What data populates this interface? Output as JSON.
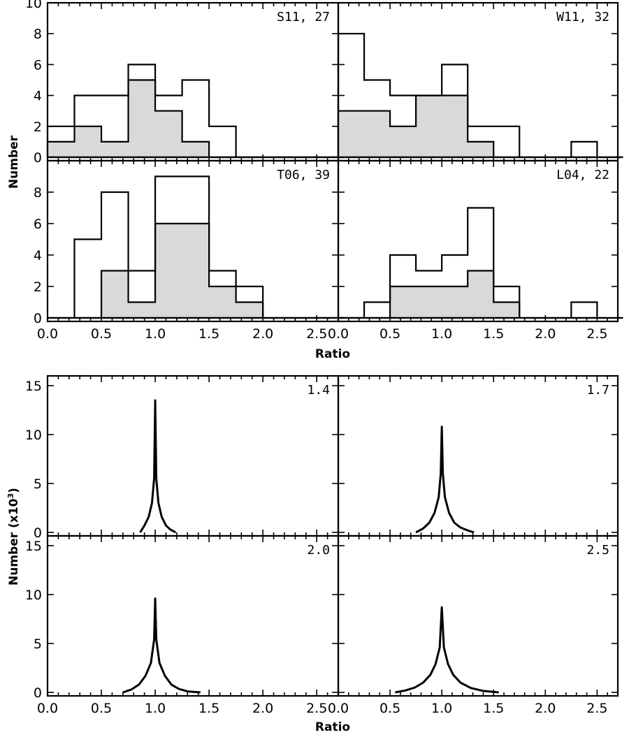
{
  "chart_data": [
    {
      "type": "histogram",
      "group": "observed",
      "xlabel": "Ratio",
      "ylabel": "Number",
      "xlim": [
        0,
        2.7
      ],
      "ylim": [
        0,
        10
      ],
      "xticks": [
        "0.0",
        "0.5",
        "1.0",
        "1.5",
        "2.0",
        "2.5"
      ],
      "yticks_top_row": [
        "0",
        "2",
        "4",
        "6",
        "8",
        "10"
      ],
      "yticks_bottom_row": [
        "0",
        "2",
        "4",
        "6",
        "8"
      ],
      "bin_width": 0.25,
      "bin_starts": [
        0,
        0.25,
        0.5,
        0.75,
        1.0,
        1.25,
        1.5,
        1.75,
        2.0,
        2.25,
        2.5
      ],
      "panels": [
        {
          "label": "S11, 27",
          "total": [
            2,
            4,
            4,
            6,
            4,
            5,
            2,
            0,
            0,
            0,
            0
          ],
          "subset": [
            1,
            2,
            1,
            5,
            3,
            1,
            0,
            0,
            0,
            0,
            0
          ]
        },
        {
          "label": "W11, 32",
          "total": [
            8,
            5,
            4,
            4,
            6,
            2,
            2,
            0,
            0,
            1,
            0
          ],
          "subset": [
            3,
            3,
            2,
            4,
            4,
            1,
            0,
            0,
            0,
            0,
            0
          ]
        },
        {
          "label": "T06, 39",
          "total": [
            0,
            5,
            8,
            3,
            9,
            9,
            3,
            2,
            0,
            0,
            0
          ],
          "subset": [
            0,
            0,
            3,
            1,
            6,
            6,
            2,
            1,
            0,
            0,
            0
          ]
        },
        {
          "label": "L04, 22",
          "total": [
            0,
            1,
            4,
            3,
            4,
            7,
            2,
            0,
            0,
            1,
            0
          ],
          "subset": [
            0,
            0,
            2,
            2,
            2,
            3,
            1,
            0,
            0,
            0,
            0
          ]
        }
      ]
    },
    {
      "type": "line",
      "group": "simulated",
      "xlabel": "Ratio",
      "ylabel": "Number (x10^3)",
      "ylabel_main": "Number (x10",
      "ylabel_sup": "3",
      "ylabel_close": ")",
      "xlim": [
        0,
        2.7
      ],
      "ylim": [
        0,
        16
      ],
      "xticks": [
        "0.0",
        "0.5",
        "1.0",
        "1.5",
        "2.0",
        "2.5"
      ],
      "yticks": [
        "0",
        "5",
        "10",
        "15"
      ],
      "panels": [
        {
          "label": "1.4",
          "peak": 13.5,
          "x": [
            0.86,
            0.9,
            0.94,
            0.97,
            0.99,
            1.0,
            1.01,
            1.03,
            1.06,
            1.1,
            1.14,
            1.19
          ],
          "y": [
            0.0,
            0.7,
            1.6,
            3.0,
            5.5,
            13.5,
            5.5,
            3.0,
            1.6,
            0.7,
            0.3,
            0.0
          ]
        },
        {
          "label": "1.7",
          "peak": 10.8,
          "x": [
            0.75,
            0.82,
            0.88,
            0.93,
            0.97,
            0.99,
            1.0,
            1.01,
            1.03,
            1.07,
            1.12,
            1.18,
            1.25,
            1.31
          ],
          "y": [
            0.0,
            0.4,
            1.0,
            2.0,
            3.6,
            6.0,
            10.8,
            6.0,
            3.6,
            2.0,
            1.0,
            0.5,
            0.2,
            0.0
          ]
        },
        {
          "label": "2.0",
          "peak": 9.6,
          "x": [
            0.7,
            0.78,
            0.85,
            0.91,
            0.96,
            0.99,
            1.0,
            1.01,
            1.04,
            1.09,
            1.15,
            1.22,
            1.3,
            1.42
          ],
          "y": [
            0.0,
            0.3,
            0.8,
            1.7,
            3.0,
            5.4,
            9.6,
            5.4,
            3.0,
            1.7,
            0.8,
            0.35,
            0.1,
            0.0
          ]
        },
        {
          "label": "2.5",
          "peak": 8.7,
          "x": [
            0.55,
            0.65,
            0.74,
            0.82,
            0.89,
            0.94,
            0.98,
            1.0,
            1.02,
            1.06,
            1.11,
            1.18,
            1.28,
            1.4,
            1.55
          ],
          "y": [
            0.0,
            0.2,
            0.5,
            1.0,
            1.8,
            2.9,
            4.6,
            8.7,
            4.6,
            2.9,
            1.8,
            1.0,
            0.45,
            0.15,
            0.0
          ]
        }
      ]
    }
  ]
}
